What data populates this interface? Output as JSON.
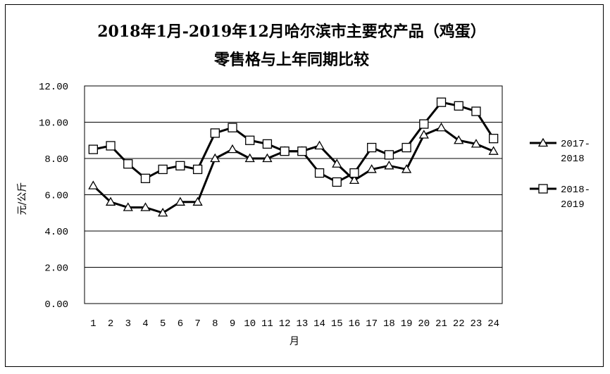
{
  "chart_data": {
    "type": "line",
    "title_lines": [
      "2018年1月-2019年12月哈尔滨市主要农产品（鸡蛋）",
      "零售格与上年同期比较"
    ],
    "xlabel": "月",
    "ylabel": "元/公斤",
    "ylim": [
      0,
      12
    ],
    "y_ticks": [
      "0.00",
      "2.00",
      "4.00",
      "6.00",
      "8.00",
      "10.00",
      "12.00"
    ],
    "categories": [
      "1",
      "2",
      "3",
      "4",
      "5",
      "6",
      "7",
      "8",
      "9",
      "10",
      "11",
      "12",
      "13",
      "14",
      "15",
      "16",
      "17",
      "18",
      "19",
      "20",
      "21",
      "22",
      "23",
      "24"
    ],
    "grid": "horizontal",
    "legend_position": "right",
    "series": [
      {
        "name_lines": [
          "2017-",
          "2018"
        ],
        "marker": "triangle",
        "values": [
          6.5,
          5.6,
          5.3,
          5.3,
          5.0,
          5.6,
          5.6,
          8.0,
          8.5,
          8.0,
          8.0,
          8.4,
          8.4,
          8.7,
          7.7,
          6.8,
          7.4,
          7.6,
          7.4,
          9.3,
          9.7,
          9.0,
          8.8,
          8.4
        ]
      },
      {
        "name_lines": [
          "2018-",
          "2019"
        ],
        "marker": "square",
        "values": [
          8.5,
          8.7,
          7.7,
          6.9,
          7.4,
          7.6,
          7.4,
          9.4,
          9.7,
          9.0,
          8.8,
          8.4,
          8.4,
          7.2,
          6.7,
          7.2,
          8.6,
          8.2,
          8.6,
          9.9,
          11.1,
          10.9,
          10.6,
          9.1
        ]
      }
    ]
  }
}
